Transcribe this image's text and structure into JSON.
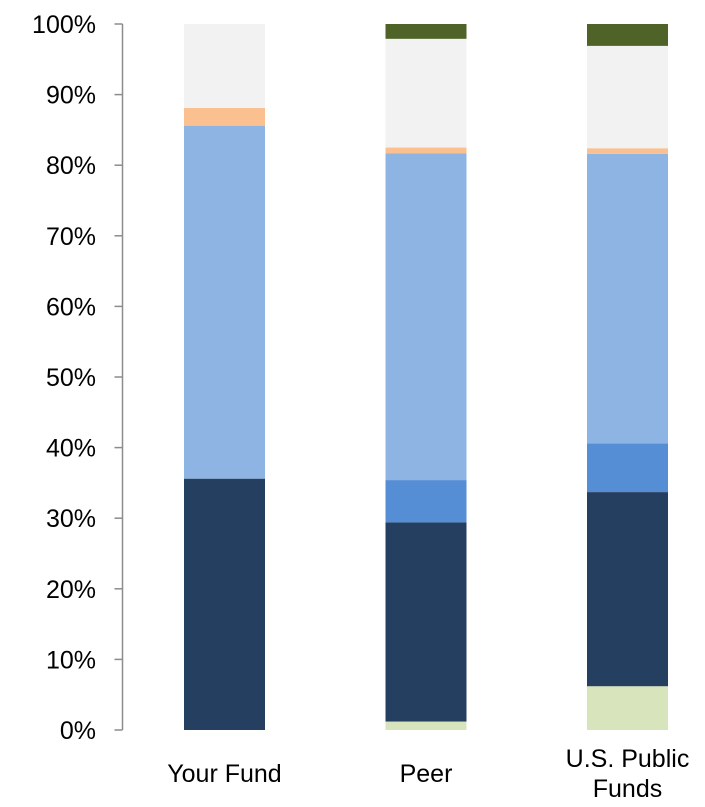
{
  "chart_data": {
    "type": "bar",
    "stacked": true,
    "percent": true,
    "categories": [
      "Your Fund",
      "Peer",
      "U.S. Public Funds"
    ],
    "category_lines": [
      [
        "Your Fund"
      ],
      [
        "Peer"
      ],
      [
        "U.S. Public",
        "Funds"
      ]
    ],
    "y_ticks": [
      "0%",
      "10%",
      "20%",
      "30%",
      "40%",
      "50%",
      "60%",
      "70%",
      "80%",
      "90%",
      "100%"
    ],
    "ylim": [
      0,
      100
    ],
    "grid": false,
    "legend": "none",
    "series": [
      {
        "color": "#d8e4bc",
        "values": [
          0,
          1.2,
          6.2
        ]
      },
      {
        "color": "#243f60",
        "values": [
          35.6,
          28.2,
          27.5
        ]
      },
      {
        "color": "#558ed5",
        "values": [
          0,
          6.0,
          6.9
        ]
      },
      {
        "color": "#8eb4e3",
        "values": [
          50.0,
          46.3,
          41.0
        ]
      },
      {
        "color": "#fac090",
        "values": [
          2.5,
          0.8,
          0.8
        ]
      },
      {
        "color": "#f2f2f2",
        "values": [
          11.9,
          15.4,
          14.5
        ]
      },
      {
        "color": "#4f6228",
        "values": [
          0,
          2.1,
          3.1
        ]
      }
    ]
  }
}
